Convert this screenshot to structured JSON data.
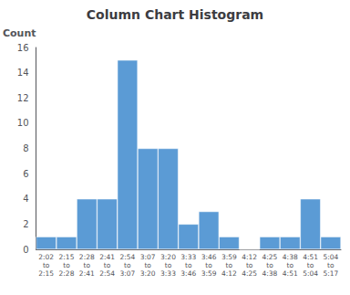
{
  "chart_data": {
    "type": "bar",
    "title": "Column Chart Histogram",
    "ylabel": "Count",
    "categories": [
      "2:02\nto\n2:15",
      "2:15\nto\n2:28",
      "2:28\nto\n2:41",
      "2:41\nto\n2:54",
      "2:54\nto\n3:07",
      "3:07\nto\n3:20",
      "3:20\nto\n3:33",
      "3:33\nto\n3:46",
      "3:46\nto\n3:59",
      "3:59\nto\n4:12",
      "4:12\nto\n4:25",
      "4:25\nto\n4:38",
      "4:38\nto\n4:51",
      "4:51\nto\n5:04",
      "5:04\nto\n5:17"
    ],
    "values": [
      1,
      1,
      4,
      4,
      15,
      8,
      8,
      2,
      3,
      1,
      0,
      1,
      1,
      4,
      1
    ],
    "color": "#5B9BD5",
    "ylim": [
      0,
      16
    ],
    "yticks": [
      0,
      2,
      4,
      6,
      8,
      10,
      12,
      14,
      16
    ],
    "grid": false
  }
}
